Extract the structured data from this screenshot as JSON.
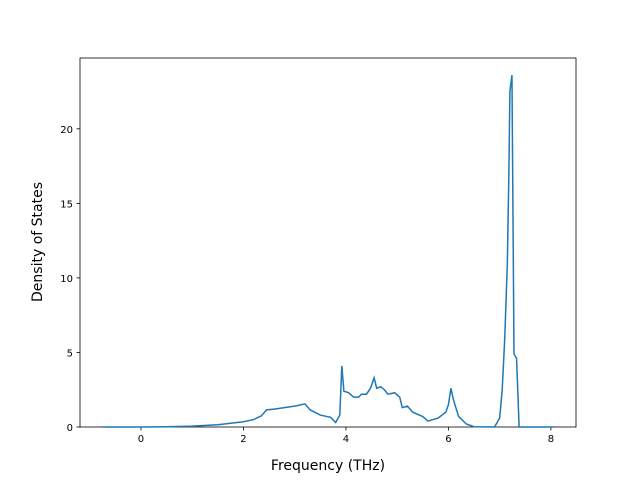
{
  "chart_data": {
    "type": "line",
    "xlabel": "Frequency (THz)",
    "ylabel": "Density of States",
    "x": [
      -0.75,
      -0.5,
      0,
      0.5,
      1,
      1.5,
      2,
      2.2,
      2.35,
      2.45,
      2.6,
      3,
      3.2,
      3.3,
      3.5,
      3.7,
      3.8,
      3.88,
      3.92,
      3.96,
      4.05,
      4.15,
      4.25,
      4.3,
      4.4,
      4.48,
      4.55,
      4.6,
      4.68,
      4.75,
      4.82,
      4.95,
      5.05,
      5.1,
      5.2,
      5.3,
      5.5,
      5.6,
      5.8,
      5.95,
      6.0,
      6.05,
      6.1,
      6.2,
      6.35,
      6.5,
      6.9,
      7.0,
      7.05,
      7.1,
      7.15,
      7.18,
      7.2,
      7.24,
      7.28,
      7.33,
      7.38,
      7.6,
      8.05
    ],
    "series": [
      {
        "color": "#1f77b4",
        "values": [
          0,
          0,
          0,
          0.02,
          0.06,
          0.15,
          0.35,
          0.5,
          0.75,
          1.15,
          1.2,
          1.4,
          1.55,
          1.15,
          0.8,
          0.65,
          0.3,
          0.8,
          4.1,
          2.4,
          2.3,
          2.0,
          2.0,
          2.2,
          2.2,
          2.6,
          3.3,
          2.6,
          2.7,
          2.5,
          2.2,
          2.3,
          2.0,
          1.3,
          1.4,
          1.0,
          0.7,
          0.4,
          0.6,
          1.0,
          1.5,
          2.6,
          1.8,
          0.7,
          0.2,
          0.02,
          0,
          0.6,
          2.5,
          6.0,
          11,
          17,
          22.5,
          23.6,
          4.9,
          4.6,
          0,
          0,
          0
        ]
      }
    ],
    "xlim": [
      -1.19,
      8.49
    ],
    "ylim": [
      0,
      24.75
    ],
    "xticks": [
      0,
      2,
      4,
      6,
      8
    ],
    "yticks": [
      0,
      5,
      10,
      15,
      20
    ]
  }
}
